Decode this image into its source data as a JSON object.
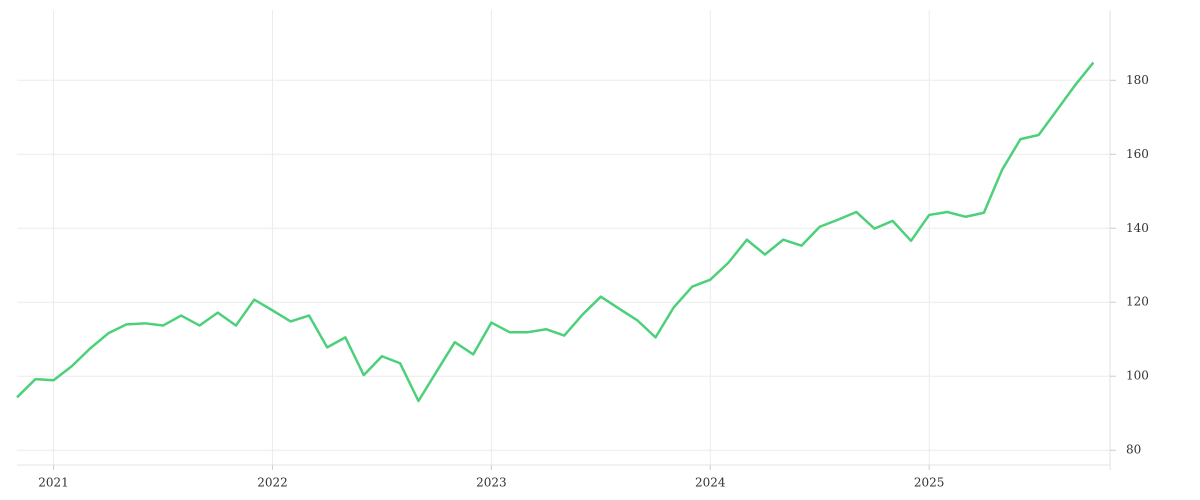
{
  "chart_data": {
    "type": "line",
    "x": [
      2020.833,
      2020.917,
      2021,
      2021.083,
      2021.167,
      2021.25,
      2021.333,
      2021.417,
      2021.5,
      2021.583,
      2021.667,
      2021.75,
      2021.833,
      2021.917,
      2022,
      2022.083,
      2022.167,
      2022.25,
      2022.333,
      2022.417,
      2022.5,
      2022.583,
      2022.667,
      2022.75,
      2022.833,
      2022.917,
      2023,
      2023.083,
      2023.167,
      2023.25,
      2023.333,
      2023.417,
      2023.5,
      2023.583,
      2023.667,
      2023.75,
      2023.833,
      2023.917,
      2024,
      2024.083,
      2024.167,
      2024.25,
      2024.333,
      2024.417,
      2024.5,
      2024.583,
      2024.667,
      2024.75,
      2024.833,
      2024.917,
      2025,
      2025.083,
      2025.167,
      2025.25,
      2025.333,
      2025.417,
      2025.5,
      2025.583,
      2025.667,
      2025.75
    ],
    "values": [
      94.3,
      99.2,
      98.9,
      102.7,
      107.5,
      111.6,
      114.0,
      114.3,
      113.7,
      116.4,
      113.7,
      117.2,
      113.7,
      120.7,
      117.8,
      114.8,
      116.4,
      107.8,
      110.5,
      100.3,
      105.4,
      103.5,
      93.3,
      101.3,
      109.2,
      105.9,
      114.5,
      111.9,
      111.9,
      112.7,
      111.0,
      116.7,
      121.5,
      118.3,
      115.1,
      110.5,
      118.6,
      124.2,
      126.1,
      130.7,
      136.9,
      132.9,
      136.9,
      135.3,
      140.4,
      142.3,
      144.4,
      139.9,
      142.0,
      136.6,
      143.6,
      144.4,
      143.1,
      144.2,
      155.8,
      164.1,
      165.2,
      171.9,
      178.7,
      184.8
    ],
    "color": "#4cd07a",
    "xlim": [
      2020.833,
      2025.826
    ],
    "xticks": [
      2021,
      2022,
      2023,
      2024,
      2025
    ],
    "ylim": [
      76,
      199
    ],
    "yticks": [
      80,
      100,
      120,
      140,
      160,
      180
    ],
    "grid": true
  }
}
